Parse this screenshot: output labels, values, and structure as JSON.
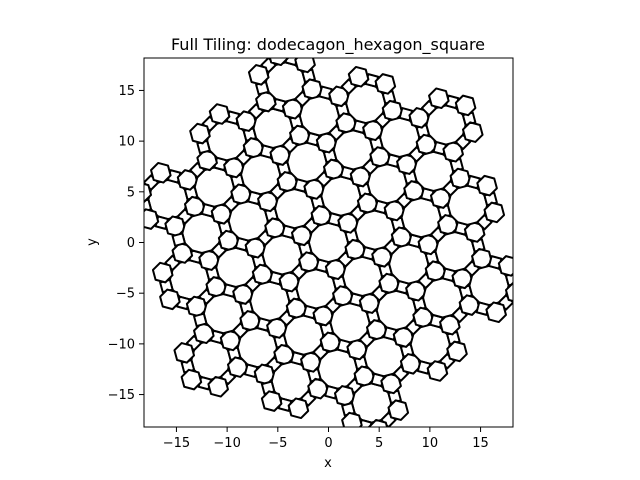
{
  "chart_data": {
    "type": "diagram",
    "title": "Full Tiling: dodecagon_hexagon_square",
    "xlabel": "x",
    "ylabel": "y",
    "xlim": [
      -18.2,
      18.2
    ],
    "ylim": [
      -18.2,
      18.2
    ],
    "xticks": [
      -15,
      -10,
      -5,
      0,
      5,
      10,
      15
    ],
    "yticks": [
      -15,
      -10,
      -5,
      0,
      5,
      10,
      15
    ],
    "tiling": {
      "edge": 1.0,
      "rotation_deg": 15,
      "polygons": [
        "dodecagon",
        "hexagon",
        "square"
      ],
      "fill": "#ffffff",
      "stroke": "#000000"
    }
  }
}
